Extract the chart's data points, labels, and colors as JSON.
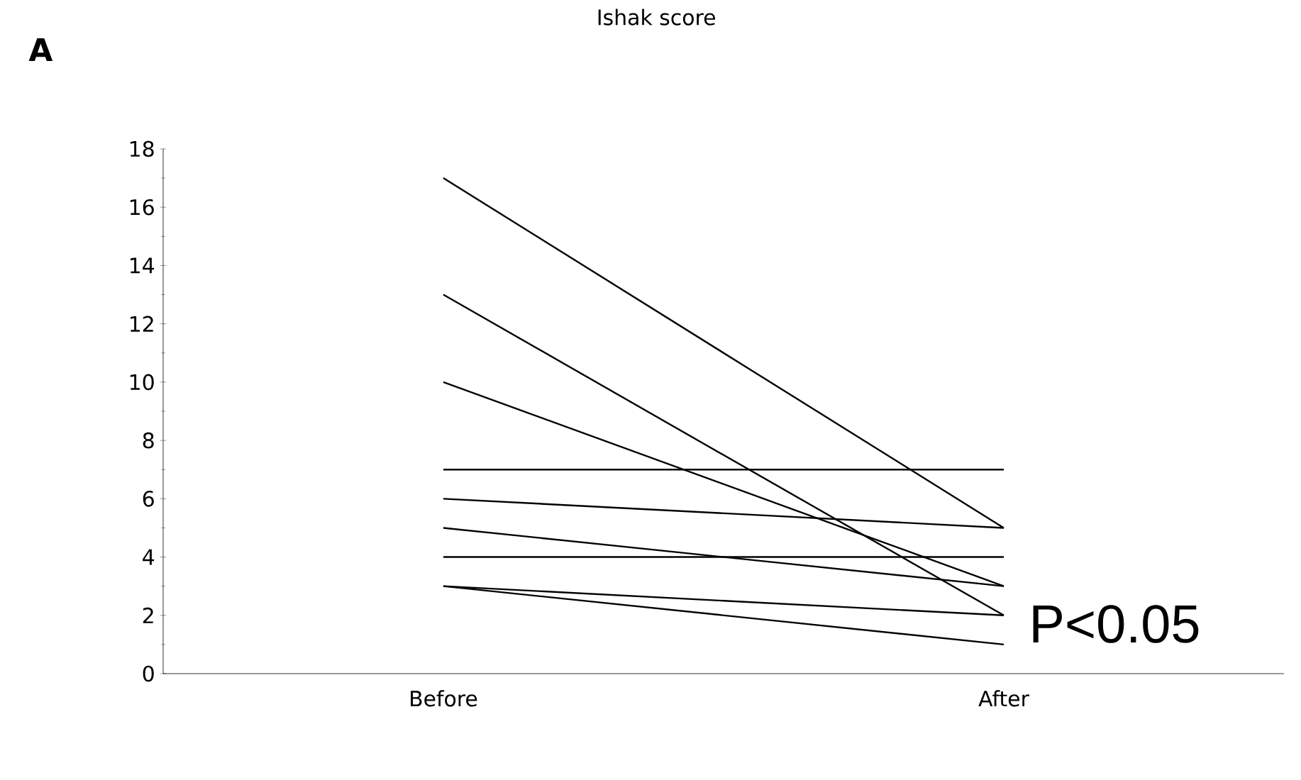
{
  "chart_data": {
    "type": "line",
    "title": "Ishak score",
    "categories": [
      "Before",
      "After"
    ],
    "series": [
      {
        "color": "#000000",
        "values": [
          17,
          5
        ]
      },
      {
        "color": "#000000",
        "values": [
          13,
          2
        ]
      },
      {
        "color": "#000000",
        "values": [
          10,
          3
        ]
      },
      {
        "color": "#000000",
        "values": [
          7,
          7
        ]
      },
      {
        "color": "#000000",
        "values": [
          6,
          5
        ]
      },
      {
        "color": "#000000",
        "values": [
          5,
          3
        ]
      },
      {
        "color": "#000000",
        "values": [
          4,
          4
        ]
      },
      {
        "color": "#000000",
        "values": [
          3,
          2
        ]
      },
      {
        "color": "#000000",
        "values": [
          3,
          1
        ]
      }
    ],
    "ylim": [
      0,
      18
    ],
    "yticks": [
      0,
      2,
      4,
      6,
      8,
      10,
      12,
      14,
      16,
      18
    ],
    "annotations": [
      "A",
      "P<0.05"
    ]
  }
}
